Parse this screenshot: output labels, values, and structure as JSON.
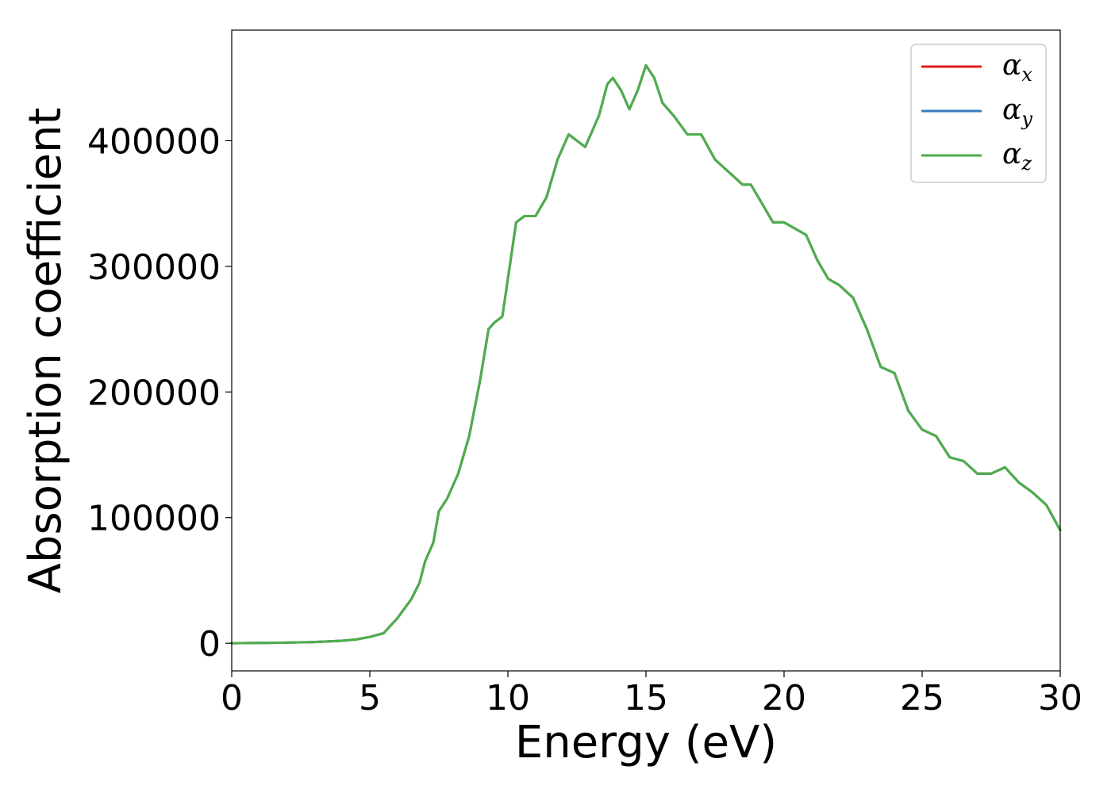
{
  "chart_data": {
    "type": "line",
    "title": "",
    "xlabel": "Energy (eV)",
    "ylabel": "Absorption coefficient",
    "xlim": [
      0,
      30
    ],
    "ylim": [
      -22000,
      488000
    ],
    "xticks": [
      0,
      5,
      10,
      15,
      20,
      25,
      30
    ],
    "xtick_labels": [
      "0",
      "5",
      "10",
      "15",
      "20",
      "25",
      "30"
    ],
    "yticks": [
      0,
      100000,
      200000,
      300000,
      400000
    ],
    "ytick_labels": [
      "0",
      "100000",
      "200000",
      "300000",
      "400000"
    ],
    "grid": false,
    "legend": {
      "position": "top-right"
    },
    "series": [
      {
        "name": "αx",
        "label_main": "α",
        "label_sub": "x",
        "color": "#e41a1c",
        "x": [
          0,
          1,
          2,
          3,
          4,
          4.5,
          5,
          5.5,
          6,
          6.5,
          6.8,
          7,
          7.3,
          7.5,
          7.8,
          8.2,
          8.6,
          9,
          9.3,
          9.5,
          9.8,
          10,
          10.3,
          10.6,
          11,
          11.4,
          11.8,
          12.2,
          12.5,
          12.8,
          13,
          13.3,
          13.6,
          13.8,
          14.1,
          14.4,
          14.7,
          15,
          15.3,
          15.6,
          16,
          16.5,
          17,
          17.5,
          18,
          18.5,
          18.8,
          19.2,
          19.6,
          20,
          20.4,
          20.8,
          21.2,
          21.6,
          22,
          22.5,
          23,
          23.5,
          24,
          24.5,
          25,
          25.5,
          26,
          26.5,
          27,
          27.5,
          28,
          28.5,
          29,
          29.5,
          30
        ],
        "y": [
          0,
          200,
          500,
          1000,
          2000,
          3000,
          5000,
          8000,
          20000,
          35000,
          48000,
          65000,
          80000,
          105000,
          115000,
          135000,
          165000,
          210000,
          250000,
          255000,
          260000,
          290000,
          335000,
          340000,
          340000,
          355000,
          385000,
          405000,
          400000,
          395000,
          405000,
          420000,
          445000,
          450000,
          440000,
          425000,
          440000,
          460000,
          450000,
          430000,
          420000,
          405000,
          405000,
          385000,
          375000,
          365000,
          365000,
          350000,
          335000,
          335000,
          330000,
          325000,
          305000,
          290000,
          285000,
          275000,
          250000,
          220000,
          215000,
          185000,
          170000,
          165000,
          148000,
          145000,
          135000,
          135000,
          140000,
          128000,
          120000,
          110000,
          90000
        ]
      },
      {
        "name": "αy",
        "label_main": "α",
        "label_sub": "y",
        "color": "#377eb8",
        "x": [
          0,
          1,
          2,
          3,
          4,
          4.5,
          5,
          5.5,
          6,
          6.5,
          6.8,
          7,
          7.3,
          7.5,
          7.8,
          8.2,
          8.6,
          9,
          9.3,
          9.5,
          9.8,
          10,
          10.3,
          10.6,
          11,
          11.4,
          11.8,
          12.2,
          12.5,
          12.8,
          13,
          13.3,
          13.6,
          13.8,
          14.1,
          14.4,
          14.7,
          15,
          15.3,
          15.6,
          16,
          16.5,
          17,
          17.5,
          18,
          18.5,
          18.8,
          19.2,
          19.6,
          20,
          20.4,
          20.8,
          21.2,
          21.6,
          22,
          22.5,
          23,
          23.5,
          24,
          24.5,
          25,
          25.5,
          26,
          26.5,
          27,
          27.5,
          28,
          28.5,
          29,
          29.5,
          30
        ],
        "y": [
          0,
          200,
          500,
          1000,
          2000,
          3000,
          5000,
          8000,
          20000,
          35000,
          48000,
          65000,
          80000,
          105000,
          115000,
          135000,
          165000,
          210000,
          250000,
          255000,
          260000,
          290000,
          335000,
          340000,
          340000,
          355000,
          385000,
          405000,
          400000,
          395000,
          405000,
          420000,
          445000,
          450000,
          440000,
          425000,
          440000,
          460000,
          450000,
          430000,
          420000,
          405000,
          405000,
          385000,
          375000,
          365000,
          365000,
          350000,
          335000,
          335000,
          330000,
          325000,
          305000,
          290000,
          285000,
          275000,
          250000,
          220000,
          215000,
          185000,
          170000,
          165000,
          148000,
          145000,
          135000,
          135000,
          140000,
          128000,
          120000,
          110000,
          90000
        ]
      },
      {
        "name": "αz",
        "label_main": "α",
        "label_sub": "z",
        "color": "#4daf4a",
        "x": [
          0,
          1,
          2,
          3,
          4,
          4.5,
          5,
          5.5,
          6,
          6.5,
          6.8,
          7,
          7.3,
          7.5,
          7.8,
          8.2,
          8.6,
          9,
          9.3,
          9.5,
          9.8,
          10,
          10.3,
          10.6,
          11,
          11.4,
          11.8,
          12.2,
          12.5,
          12.8,
          13,
          13.3,
          13.6,
          13.8,
          14.1,
          14.4,
          14.7,
          15,
          15.3,
          15.6,
          16,
          16.5,
          17,
          17.5,
          18,
          18.5,
          18.8,
          19.2,
          19.6,
          20,
          20.4,
          20.8,
          21.2,
          21.6,
          22,
          22.5,
          23,
          23.5,
          24,
          24.5,
          25,
          25.5,
          26,
          26.5,
          27,
          27.5,
          28,
          28.5,
          29,
          29.5,
          30
        ],
        "y": [
          0,
          200,
          500,
          1000,
          2000,
          3000,
          5000,
          8000,
          20000,
          35000,
          48000,
          65000,
          80000,
          105000,
          115000,
          135000,
          165000,
          210000,
          250000,
          255000,
          260000,
          290000,
          335000,
          340000,
          340000,
          355000,
          385000,
          405000,
          400000,
          395000,
          405000,
          420000,
          445000,
          450000,
          440000,
          425000,
          440000,
          460000,
          450000,
          430000,
          420000,
          405000,
          405000,
          385000,
          375000,
          365000,
          365000,
          350000,
          335000,
          335000,
          330000,
          325000,
          305000,
          290000,
          285000,
          275000,
          250000,
          220000,
          215000,
          185000,
          170000,
          165000,
          148000,
          145000,
          135000,
          135000,
          140000,
          128000,
          120000,
          110000,
          90000
        ]
      }
    ]
  }
}
